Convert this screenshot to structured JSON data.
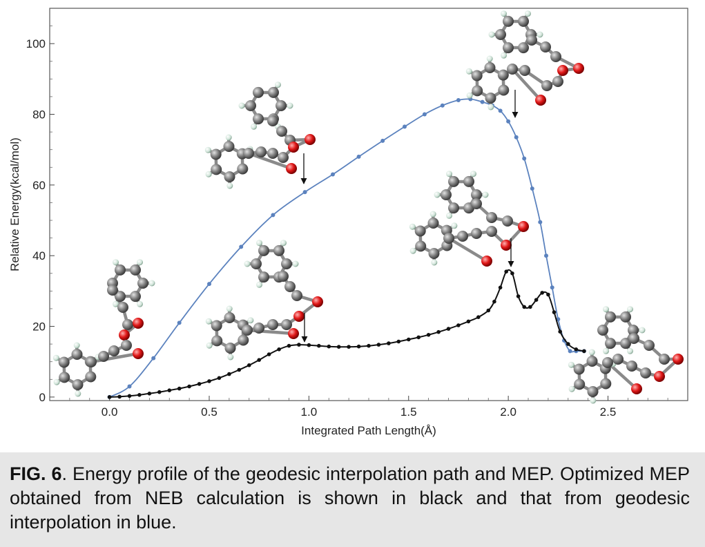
{
  "chart_data": {
    "type": "line",
    "xlabel": "Integrated Path Length(Å)",
    "ylabel": "Relative Energy(kcal/mol)",
    "xlim": [
      -0.3,
      2.9
    ],
    "ylim": [
      -1,
      110
    ],
    "x_ticks": [
      0.0,
      0.5,
      1.0,
      1.5,
      2.0,
      2.5
    ],
    "x_tick_labels": [
      "0.0",
      "0.5",
      "1.0",
      "1.5",
      "2.0",
      "2.5"
    ],
    "y_ticks": [
      0,
      20,
      40,
      60,
      80,
      100
    ],
    "y_tick_labels": [
      "0",
      "20",
      "40",
      "60",
      "80",
      "100"
    ],
    "grid": false,
    "series": [
      {
        "color": "#5b82be",
        "x": [
          0.0,
          0.1,
          0.22,
          0.35,
          0.5,
          0.66,
          0.82,
          0.98,
          1.12,
          1.25,
          1.37,
          1.48,
          1.58,
          1.67,
          1.75,
          1.81,
          1.87,
          1.92,
          1.96,
          2.0,
          2.04,
          2.08,
          2.12,
          2.16,
          2.19,
          2.22,
          2.25,
          2.28,
          2.31,
          2.34,
          2.38
        ],
        "values": [
          0,
          3,
          11,
          21,
          32,
          42.5,
          51.5,
          58,
          63,
          68,
          72.5,
          76.5,
          80,
          82.5,
          84,
          84.3,
          83.5,
          82.5,
          81,
          78,
          73.5,
          67.5,
          59,
          49.5,
          40,
          31,
          22,
          16,
          13,
          13,
          13
        ],
        "marker": "circle"
      },
      {
        "color": "#111111",
        "x": [
          0.0,
          0.05,
          0.1,
          0.15,
          0.2,
          0.25,
          0.3,
          0.35,
          0.4,
          0.45,
          0.5,
          0.55,
          0.6,
          0.65,
          0.7,
          0.75,
          0.8,
          0.85,
          0.9,
          0.95,
          1.0,
          1.05,
          1.1,
          1.15,
          1.2,
          1.25,
          1.3,
          1.35,
          1.4,
          1.45,
          1.5,
          1.55,
          1.6,
          1.65,
          1.7,
          1.75,
          1.8,
          1.85,
          1.9,
          1.93,
          1.96,
          1.99,
          2.02,
          2.05,
          2.08,
          2.11,
          2.14,
          2.17,
          2.2,
          2.23,
          2.26,
          2.3,
          2.34,
          2.38
        ],
        "values": [
          0,
          0.1,
          0.3,
          0.6,
          1.0,
          1.4,
          1.9,
          2.4,
          3.0,
          3.7,
          4.5,
          5.4,
          6.5,
          7.7,
          9.0,
          10.5,
          12.1,
          13.5,
          14.5,
          14.8,
          14.7,
          14.5,
          14.3,
          14.2,
          14.2,
          14.3,
          14.5,
          14.8,
          15.2,
          15.7,
          16.3,
          16.9,
          17.6,
          18.4,
          19.3,
          20.3,
          21.4,
          22.6,
          24.5,
          27,
          31,
          35.5,
          35,
          28.5,
          25.5,
          25.5,
          27.5,
          29.5,
          29,
          24,
          18.5,
          15,
          13.5,
          13
        ],
        "marker": "circle"
      }
    ]
  },
  "caption": {
    "fig_label": "FIG. 6",
    "text": ". Energy profile of the geodesic interpolation path and MEP. Optimized MEP obtained from NEB calculation is shown in black and that from geodesic interpolation in blue."
  }
}
